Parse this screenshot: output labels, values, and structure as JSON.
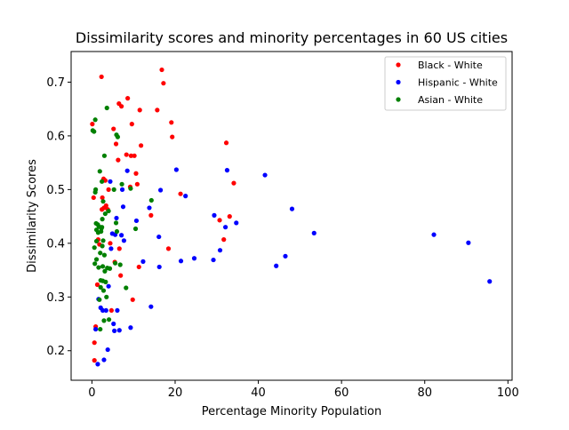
{
  "chart_data": {
    "type": "scatter",
    "title": "Dissimilarity scores and minority percentages in 60 US cities",
    "xlabel": "Percentage Minority Population",
    "ylabel": "Dissimilarity Scores",
    "xlim": [
      -5,
      101
    ],
    "ylim": [
      0.145,
      0.757
    ],
    "x_ticks": [
      0,
      20,
      40,
      60,
      80,
      100
    ],
    "y_ticks": [
      0.2,
      0.3,
      0.4,
      0.5,
      0.6,
      0.7
    ],
    "x_tick_labels": [
      "0",
      "20",
      "40",
      "60",
      "80",
      "100"
    ],
    "y_tick_labels": [
      "0.2",
      "0.3",
      "0.4",
      "0.5",
      "0.6",
      "0.7"
    ],
    "grid": false,
    "legend_position": "top-right",
    "series": [
      {
        "name": "Black - White",
        "color": "#ff0000",
        "points": [
          [
            0.1,
            0.622
          ],
          [
            0.4,
            0.485
          ],
          [
            0.6,
            0.215
          ],
          [
            0.6,
            0.182
          ],
          [
            0.9,
            0.245
          ],
          [
            1.3,
            0.323
          ],
          [
            1.5,
            0.407
          ],
          [
            1.8,
            0.398
          ],
          [
            2.3,
            0.71
          ],
          [
            2.4,
            0.463
          ],
          [
            2.5,
            0.485
          ],
          [
            2.8,
            0.52
          ],
          [
            2.9,
            0.466
          ],
          [
            3.2,
            0.517
          ],
          [
            3.4,
            0.47
          ],
          [
            3.8,
            0.463
          ],
          [
            4.0,
            0.5
          ],
          [
            4.4,
            0.4
          ],
          [
            4.7,
            0.275
          ],
          [
            5.2,
            0.613
          ],
          [
            5.5,
            0.365
          ],
          [
            5.8,
            0.585
          ],
          [
            6.3,
            0.555
          ],
          [
            6.5,
            0.66
          ],
          [
            6.6,
            0.39
          ],
          [
            6.9,
            0.34
          ],
          [
            7.1,
            0.655
          ],
          [
            8.3,
            0.565
          ],
          [
            8.6,
            0.67
          ],
          [
            9.2,
            0.505
          ],
          [
            9.4,
            0.563
          ],
          [
            9.6,
            0.622
          ],
          [
            9.8,
            0.295
          ],
          [
            10.2,
            0.563
          ],
          [
            10.6,
            0.53
          ],
          [
            10.9,
            0.51
          ],
          [
            11.3,
            0.356
          ],
          [
            11.5,
            0.648
          ],
          [
            11.8,
            0.582
          ],
          [
            14.2,
            0.452
          ],
          [
            15.7,
            0.648
          ],
          [
            16.8,
            0.723
          ],
          [
            17.2,
            0.698
          ],
          [
            18.4,
            0.39
          ],
          [
            19.1,
            0.625
          ],
          [
            19.3,
            0.598
          ],
          [
            21.3,
            0.492
          ],
          [
            30.7,
            0.443
          ],
          [
            31.7,
            0.407
          ],
          [
            32.3,
            0.587
          ],
          [
            33.1,
            0.45
          ],
          [
            34.1,
            0.512
          ]
        ]
      },
      {
        "name": "Hispanic - White",
        "color": "#0000ff",
        "points": [
          [
            0.9,
            0.24
          ],
          [
            1.4,
            0.175
          ],
          [
            1.6,
            0.296
          ],
          [
            2.1,
            0.28
          ],
          [
            2.6,
            0.275
          ],
          [
            2.9,
            0.183
          ],
          [
            3.4,
            0.275
          ],
          [
            3.8,
            0.202
          ],
          [
            4.0,
            0.32
          ],
          [
            4.4,
            0.515
          ],
          [
            4.6,
            0.39
          ],
          [
            4.9,
            0.418
          ],
          [
            5.2,
            0.25
          ],
          [
            5.4,
            0.237
          ],
          [
            5.6,
            0.416
          ],
          [
            5.9,
            0.447
          ],
          [
            6.1,
            0.275
          ],
          [
            6.6,
            0.238
          ],
          [
            7.1,
            0.415
          ],
          [
            7.3,
            0.5
          ],
          [
            7.5,
            0.468
          ],
          [
            7.7,
            0.405
          ],
          [
            8.5,
            0.535
          ],
          [
            9.3,
            0.243
          ],
          [
            10.7,
            0.442
          ],
          [
            12.3,
            0.366
          ],
          [
            13.8,
            0.466
          ],
          [
            14.2,
            0.282
          ],
          [
            16.1,
            0.412
          ],
          [
            16.2,
            0.356
          ],
          [
            16.5,
            0.499
          ],
          [
            20.3,
            0.537
          ],
          [
            21.4,
            0.367
          ],
          [
            22.5,
            0.488
          ],
          [
            24.6,
            0.372
          ],
          [
            29.2,
            0.369
          ],
          [
            29.4,
            0.452
          ],
          [
            30.8,
            0.387
          ],
          [
            32.1,
            0.43
          ],
          [
            32.5,
            0.536
          ],
          [
            34.7,
            0.438
          ],
          [
            41.6,
            0.527
          ],
          [
            44.3,
            0.358
          ],
          [
            46.5,
            0.376
          ],
          [
            48.1,
            0.464
          ],
          [
            53.4,
            0.419
          ],
          [
            82.2,
            0.416
          ],
          [
            90.5,
            0.401
          ],
          [
            95.6,
            0.329
          ]
        ]
      },
      {
        "name": "Asian - White",
        "color": "#008000",
        "points": [
          [
            0.2,
            0.61
          ],
          [
            0.5,
            0.608
          ],
          [
            0.6,
            0.392
          ],
          [
            0.7,
            0.362
          ],
          [
            0.8,
            0.63
          ],
          [
            0.8,
            0.495
          ],
          [
            0.9,
            0.5
          ],
          [
            1.0,
            0.437
          ],
          [
            1.1,
            0.425
          ],
          [
            1.1,
            0.404
          ],
          [
            1.1,
            0.37
          ],
          [
            1.4,
            0.435
          ],
          [
            1.5,
            0.42
          ],
          [
            1.6,
            0.355
          ],
          [
            1.7,
            0.431
          ],
          [
            1.8,
            0.295
          ],
          [
            1.9,
            0.534
          ],
          [
            2.0,
            0.382
          ],
          [
            2.0,
            0.24
          ],
          [
            2.1,
            0.318
          ],
          [
            2.1,
            0.331
          ],
          [
            2.2,
            0.422
          ],
          [
            2.3,
            0.428
          ],
          [
            2.4,
            0.43
          ],
          [
            2.4,
            0.515
          ],
          [
            2.5,
            0.395
          ],
          [
            2.5,
            0.445
          ],
          [
            2.6,
            0.357
          ],
          [
            2.6,
            0.33
          ],
          [
            2.7,
            0.478
          ],
          [
            2.7,
            0.405
          ],
          [
            2.8,
            0.312
          ],
          [
            2.9,
            0.256
          ],
          [
            3.0,
            0.563
          ],
          [
            3.0,
            0.378
          ],
          [
            3.1,
            0.348
          ],
          [
            3.2,
            0.455
          ],
          [
            3.3,
            0.328
          ],
          [
            3.5,
            0.3
          ],
          [
            3.6,
            0.652
          ],
          [
            3.7,
            0.354
          ],
          [
            4.0,
            0.46
          ],
          [
            4.1,
            0.258
          ],
          [
            4.3,
            0.353
          ],
          [
            5.3,
            0.5
          ],
          [
            5.6,
            0.363
          ],
          [
            5.8,
            0.438
          ],
          [
            5.9,
            0.602
          ],
          [
            6.0,
            0.422
          ],
          [
            6.2,
            0.598
          ],
          [
            6.8,
            0.36
          ],
          [
            7.2,
            0.51
          ],
          [
            8.2,
            0.317
          ],
          [
            9.3,
            0.502
          ],
          [
            10.5,
            0.427
          ],
          [
            14.3,
            0.48
          ]
        ]
      }
    ]
  }
}
